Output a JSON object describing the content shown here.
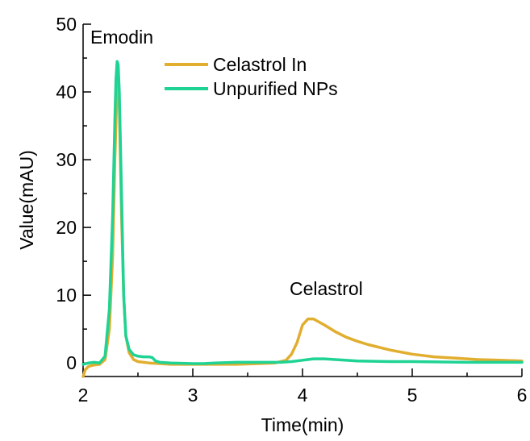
{
  "chart_data": {
    "type": "line",
    "xlabel": "Time(min)",
    "ylabel": "Value(mAU)",
    "xlim": [
      2,
      6
    ],
    "ylim": [
      -2,
      50
    ],
    "x_ticks": [
      2,
      3,
      4,
      5,
      6
    ],
    "y_ticks": [
      0,
      10,
      20,
      30,
      40,
      50
    ],
    "grid": false,
    "legend_position": "top-center",
    "annotations": [
      {
        "text": "Emodin",
        "x": 2.33,
        "y": 48
      },
      {
        "text": "Celastrol",
        "x": 4.05,
        "y": 10
      }
    ],
    "series": [
      {
        "name": "Celastrol In",
        "color": "#E1AE2F",
        "x": [
          2.0,
          2.02,
          2.05,
          2.1,
          2.15,
          2.2,
          2.24,
          2.27,
          2.29,
          2.31,
          2.32,
          2.33,
          2.35,
          2.37,
          2.39,
          2.42,
          2.46,
          2.5,
          2.6,
          2.7,
          2.8,
          3.0,
          3.2,
          3.4,
          3.6,
          3.75,
          3.85,
          3.9,
          3.95,
          4.0,
          4.05,
          4.1,
          4.2,
          4.3,
          4.4,
          4.5,
          4.6,
          4.8,
          5.0,
          5.2,
          5.4,
          5.6,
          5.8,
          6.0
        ],
        "y": [
          -2.0,
          -1.0,
          -0.5,
          -0.3,
          -0.2,
          0.5,
          5.0,
          16.0,
          30.0,
          41.0,
          41.5,
          38.0,
          22.0,
          10.0,
          4.0,
          1.5,
          0.5,
          0.2,
          0.0,
          -0.1,
          -0.2,
          -0.2,
          -0.2,
          -0.2,
          -0.1,
          0.0,
          0.4,
          1.3,
          3.0,
          5.6,
          6.5,
          6.5,
          5.6,
          4.6,
          3.8,
          3.2,
          2.7,
          1.9,
          1.3,
          0.9,
          0.7,
          0.5,
          0.4,
          0.3
        ]
      },
      {
        "name": "Unpurified NPs",
        "color": "#1ED393",
        "x": [
          2.0,
          2.05,
          2.1,
          2.15,
          2.2,
          2.24,
          2.27,
          2.29,
          2.3,
          2.31,
          2.32,
          2.33,
          2.35,
          2.37,
          2.39,
          2.42,
          2.46,
          2.5,
          2.55,
          2.6,
          2.63,
          2.66,
          2.7,
          2.8,
          3.0,
          3.1,
          3.2,
          3.4,
          3.6,
          3.8,
          3.9,
          4.0,
          4.1,
          4.2,
          4.3,
          4.5,
          4.8,
          5.0,
          5.5,
          6.0
        ],
        "y": [
          -0.2,
          0.0,
          0.1,
          0.0,
          1.0,
          8.0,
          22.0,
          36.0,
          42.0,
          44.5,
          44.0,
          40.0,
          25.0,
          10.0,
          4.0,
          2.0,
          1.2,
          1.0,
          0.9,
          0.9,
          0.8,
          0.3,
          0.1,
          0.0,
          -0.1,
          -0.1,
          0.0,
          0.1,
          0.1,
          0.1,
          0.2,
          0.4,
          0.6,
          0.6,
          0.5,
          0.3,
          0.2,
          0.2,
          0.1,
          0.1
        ]
      }
    ]
  }
}
